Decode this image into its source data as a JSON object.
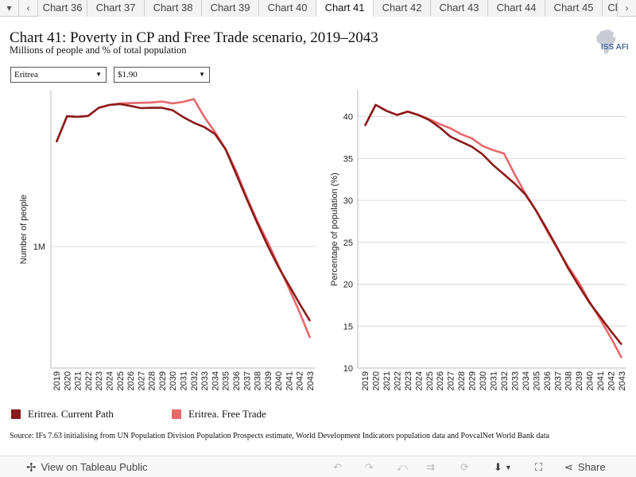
{
  "tabs": {
    "items": [
      {
        "label": "Chart 36",
        "w": 62
      },
      {
        "label": "Chart 37",
        "w": 72
      },
      {
        "label": "Chart 38",
        "w": 72
      },
      {
        "label": "Chart 39",
        "w": 72
      },
      {
        "label": "Chart 40",
        "w": 72
      },
      {
        "label": "Chart 41",
        "w": 72,
        "active": true
      },
      {
        "label": "Chart 42",
        "w": 72
      },
      {
        "label": "Chart 43",
        "w": 72
      },
      {
        "label": "Chart 44",
        "w": 72
      },
      {
        "label": "Chart 45",
        "w": 72
      },
      {
        "label": "Char",
        "w": 42
      }
    ]
  },
  "header": {
    "title": "Chart 41: Poverty in CP and Free Trade scenario, 2019–2043",
    "subtitle": "Millions of people and % of total population",
    "logo_text": "ISS AFI"
  },
  "filters": {
    "country": "Eritrea",
    "poverty_line": "$1.90"
  },
  "colors": {
    "current_path": "#8b1a1a",
    "free_trade": "#e8686c",
    "grid": "#d9d9d9"
  },
  "chart_data": [
    {
      "type": "line",
      "ylabel": "Number of people",
      "y_ticks": [
        {
          "label": "1M",
          "value": 1.0
        }
      ],
      "ylim": [
        0.61,
        1.5
      ],
      "x": [
        2019,
        2020,
        2021,
        2022,
        2023,
        2024,
        2025,
        2026,
        2027,
        2028,
        2029,
        2030,
        2031,
        2032,
        2033,
        2034,
        2035,
        2036,
        2037,
        2038,
        2039,
        2040,
        2041,
        2042,
        2043
      ],
      "series": [
        {
          "name": "Eritrea. Current Path",
          "values": [
            1.335,
            1.418,
            1.416,
            1.419,
            1.445,
            1.454,
            1.457,
            1.451,
            1.444,
            1.445,
            1.445,
            1.437,
            1.415,
            1.397,
            1.383,
            1.361,
            1.312,
            1.233,
            1.153,
            1.076,
            1.002,
            0.935,
            0.876,
            0.817,
            0.761
          ]
        },
        {
          "name": "Eritrea. Free Trade",
          "values": [
            1.335,
            1.418,
            1.416,
            1.419,
            1.445,
            1.454,
            1.459,
            1.46,
            1.461,
            1.462,
            1.465,
            1.459,
            1.464,
            1.473,
            1.415,
            1.367,
            1.313,
            1.242,
            1.159,
            1.082,
            1.014,
            0.94,
            0.866,
            0.79,
            0.707
          ]
        }
      ]
    },
    {
      "type": "line",
      "ylabel": "Percentage of population (%)",
      "y_ticks": [
        10,
        15,
        20,
        25,
        30,
        35,
        40
      ],
      "ylim": [
        10,
        43.1
      ],
      "x": [
        2019,
        2020,
        2021,
        2022,
        2023,
        2024,
        2025,
        2026,
        2027,
        2028,
        2029,
        2030,
        2031,
        2032,
        2033,
        2034,
        2035,
        2036,
        2037,
        2038,
        2039,
        2040,
        2041,
        2042,
        2043
      ],
      "series": [
        {
          "name": "Eritrea. Current Path",
          "values": [
            38.9,
            41.4,
            40.7,
            40.2,
            40.6,
            40.2,
            39.6,
            38.7,
            37.6,
            37.0,
            36.4,
            35.5,
            34.2,
            33.1,
            32.0,
            30.7,
            28.8,
            26.6,
            24.3,
            21.9,
            19.8,
            17.8,
            16.1,
            14.4,
            12.8
          ]
        },
        {
          "name": "Eritrea. Free Trade",
          "values": [
            38.9,
            41.4,
            40.7,
            40.2,
            40.6,
            40.2,
            39.7,
            39.1,
            38.6,
            37.9,
            37.4,
            36.5,
            36.0,
            35.6,
            33.1,
            30.8,
            28.8,
            26.4,
            24.2,
            22.1,
            20.2,
            17.9,
            15.8,
            13.6,
            11.2
          ]
        }
      ]
    }
  ],
  "legend": {
    "current_path": "Eritrea. Current Path",
    "free_trade": "Eritrea. Free Trade"
  },
  "source": "Source: IFs 7.63 initialising from UN Population Division Population Prospects estimate, World Development Indicators population data and PovcalNet World Bank data",
  "toolbar": {
    "view_label": "View on Tableau Public",
    "share_label": "Share"
  }
}
